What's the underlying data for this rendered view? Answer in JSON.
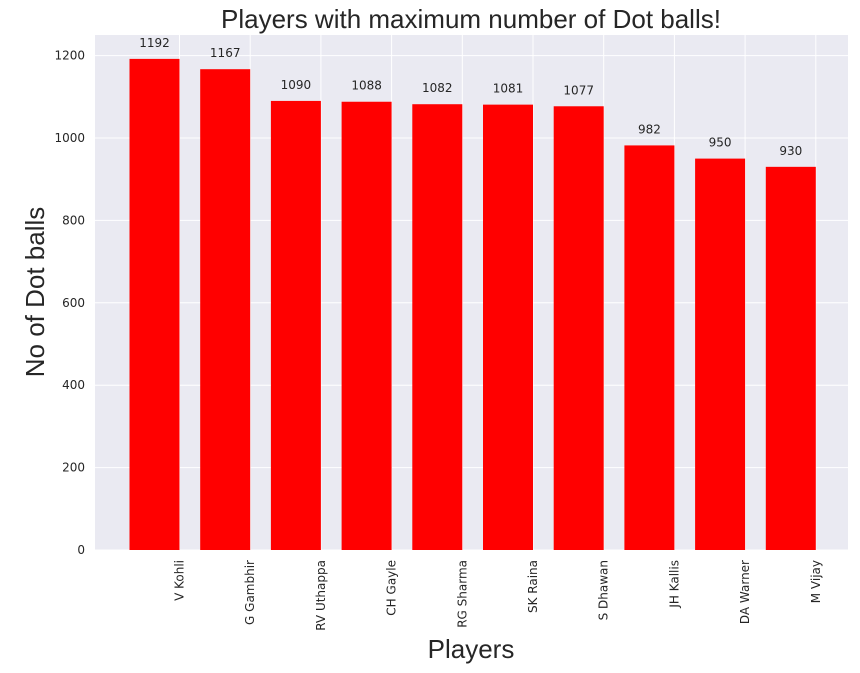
{
  "chart_data": {
    "type": "bar",
    "title": "Players with maximum number of Dot balls!",
    "xlabel": "Players",
    "ylabel": "No of Dot balls",
    "categories": [
      "V Kohli",
      "G Gambhir",
      "RV Uthappa",
      "CH Gayle",
      "RG Sharma",
      "SK Raina",
      "S Dhawan",
      "JH Kallis",
      "DA Warner",
      "M Vijay"
    ],
    "values": [
      1192,
      1167,
      1090,
      1088,
      1082,
      1081,
      1077,
      982,
      950,
      930
    ],
    "ylim": [
      0,
      1250
    ],
    "yticks": [
      0,
      200,
      400,
      600,
      800,
      1000,
      1200
    ],
    "grid": true,
    "bar_color": "#ff0000",
    "background_color": "#eaeaf2"
  }
}
